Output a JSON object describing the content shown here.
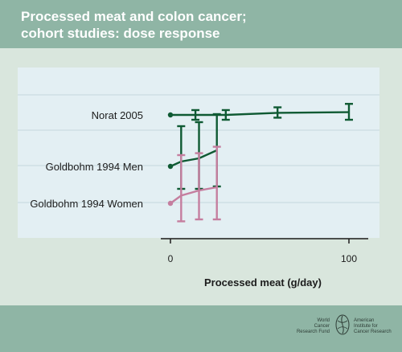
{
  "chart_data": {
    "type": "line",
    "title": [
      "Processed meat and colon cancer;",
      "cohort studies: dose response"
    ],
    "xlabel": "Processed meat (g/day)",
    "ylabel": "",
    "x_ticks": [
      0,
      100
    ],
    "xlim": [
      0,
      110
    ],
    "grid": true,
    "series": [
      {
        "name": "Norat 2005",
        "color": "#0f5a33",
        "rel": [
          1.0,
          1.0,
          1.0,
          1.03,
          1.04
        ],
        "points": [
          {
            "x": 0,
            "y": 1.0,
            "lo": null,
            "hi": null
          },
          {
            "x": 14,
            "y": 1.0,
            "lo": 0.93,
            "hi": 1.07
          },
          {
            "x": 31,
            "y": 1.0,
            "lo": 0.93,
            "hi": 1.07
          },
          {
            "x": 60,
            "y": 1.03,
            "lo": 0.96,
            "hi": 1.11
          },
          {
            "x": 100,
            "y": 1.04,
            "lo": 0.93,
            "hi": 1.16
          }
        ]
      },
      {
        "name": "Goldbohm 1994 Men",
        "color": "#0f5a33",
        "points": [
          {
            "x": 0,
            "y": 1.0,
            "lo": null,
            "hi": null
          },
          {
            "x": 6,
            "y": 1.06,
            "lo": 0.72,
            "hi": 1.5
          },
          {
            "x": 16,
            "y": 1.1,
            "lo": 0.72,
            "hi": 1.55
          },
          {
            "x": 26,
            "y": 1.2,
            "lo": 0.75,
            "hi": 1.65
          }
        ]
      },
      {
        "name": "Goldbohm 1994 Women",
        "color": "#c57e9f",
        "points": [
          {
            "x": 0,
            "y": 1.0,
            "lo": null,
            "hi": null
          },
          {
            "x": 6,
            "y": 1.12,
            "lo": 0.72,
            "hi": 1.75
          },
          {
            "x": 16,
            "y": 1.2,
            "lo": 0.75,
            "hi": 1.78
          },
          {
            "x": 26,
            "y": 1.25,
            "lo": 0.75,
            "hi": 1.88
          }
        ]
      }
    ]
  },
  "footer": {
    "wcrf": [
      "World",
      "Cancer",
      "Research Fund"
    ],
    "aicr": [
      "American",
      "Institute for",
      "Cancer Research"
    ]
  }
}
